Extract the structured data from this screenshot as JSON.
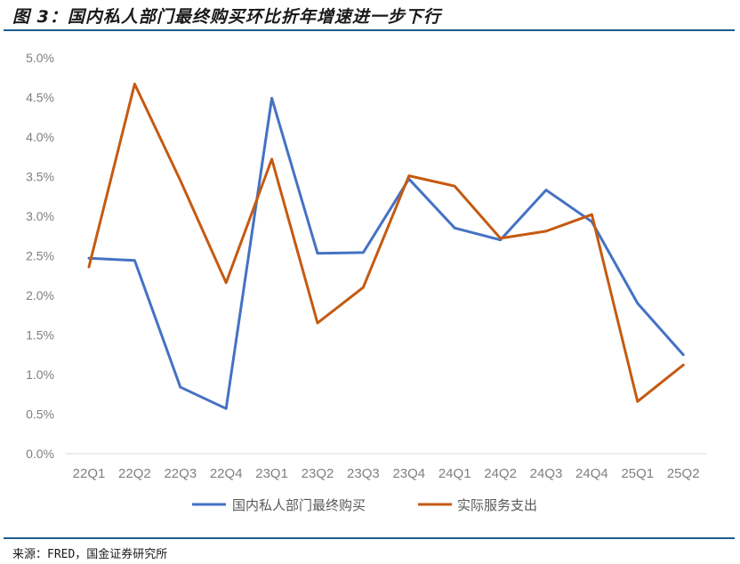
{
  "title": "图 3：国内私人部门最终购买环比折年增速进一步下行",
  "source": "来源：FRED，国金证券研究所",
  "chart_data": {
    "type": "line",
    "title": "图 3：国内私人部门最终购买环比折年增速进一步下行",
    "xlabel": "",
    "ylabel": "",
    "ylim": [
      0,
      5.0
    ],
    "yticks": [
      "0.0%",
      "0.5%",
      "1.0%",
      "1.5%",
      "2.0%",
      "2.5%",
      "3.0%",
      "3.5%",
      "4.0%",
      "4.5%",
      "5.0%"
    ],
    "grid": false,
    "legend_position": "bottom",
    "categories": [
      "22Q1",
      "22Q2",
      "22Q3",
      "22Q4",
      "23Q1",
      "23Q2",
      "23Q3",
      "23Q4",
      "24Q1",
      "24Q2",
      "24Q3",
      "24Q4",
      "25Q1",
      "25Q2"
    ],
    "series": [
      {
        "name": "国内私人部门最终购买",
        "color": "#4472c4",
        "values": [
          2.47,
          2.44,
          0.84,
          0.57,
          4.49,
          2.53,
          2.54,
          3.47,
          2.85,
          2.7,
          3.33,
          2.93,
          1.9,
          1.25
        ]
      },
      {
        "name": "实际服务支出",
        "color": "#c55a11",
        "values": [
          2.36,
          4.67,
          3.45,
          2.16,
          3.72,
          1.65,
          2.1,
          3.51,
          3.38,
          2.72,
          2.81,
          3.02,
          0.66,
          1.12
        ]
      }
    ]
  }
}
